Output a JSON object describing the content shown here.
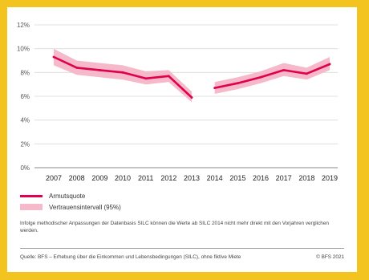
{
  "chart_data": {
    "type": "line",
    "x": [
      "2007",
      "2008",
      "2009",
      "2010",
      "2011",
      "2012",
      "2013",
      "2014",
      "2015",
      "2016",
      "2017",
      "2018",
      "2019"
    ],
    "series": [
      {
        "name": "Armutsquote",
        "values": [
          9.3,
          8.4,
          8.2,
          8.0,
          7.5,
          7.7,
          5.9,
          6.7,
          7.1,
          7.6,
          8.2,
          7.9,
          8.7
        ],
        "lower": [
          8.6,
          7.8,
          7.6,
          7.4,
          7.0,
          7.2,
          5.5,
          6.2,
          6.6,
          7.1,
          7.7,
          7.4,
          8.2
        ],
        "upper": [
          10.0,
          9.0,
          8.8,
          8.6,
          8.1,
          8.2,
          6.4,
          7.2,
          7.6,
          8.1,
          8.8,
          8.4,
          9.3
        ]
      }
    ],
    "break_after": "2013",
    "yticks": [
      "0%",
      "2%",
      "4%",
      "6%",
      "8%",
      "10%",
      "12%"
    ],
    "ylim": [
      0,
      12
    ],
    "grid": true,
    "legend": [
      "Armutsquote",
      "Vertrauensintervall (95%)"
    ],
    "legend_position": "bottom-left",
    "colors": {
      "line": "#e0004d",
      "band": "#f6b9c9",
      "grid": "#d9d9d9",
      "background": "#f3c31f"
    }
  },
  "note": "Infolge methodischer Anpassungen der Datenbasis SILC können die Werte ab SILC 2014 nicht mehr direkt mit den Vorjahren verglichen werden.",
  "source": "Quelle: BFS – Erhebung über die Einkommen und Lebensbedingungen (SILC), ohne fiktive Miete",
  "copyright": "© BFS 2021"
}
